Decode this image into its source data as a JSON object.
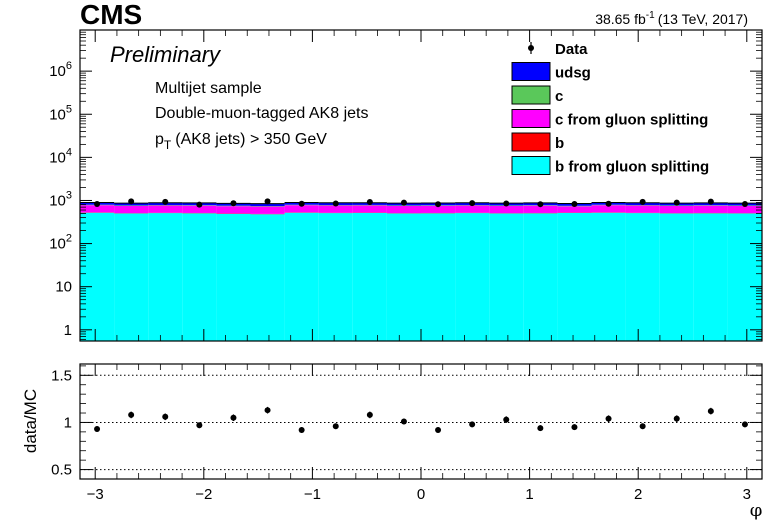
{
  "header": {
    "experiment": "CMS",
    "luminosity_value": "38.65 fb",
    "luminosity_unit_exp": "-1",
    "energy_year": "(13 TeV, 2017)",
    "status": "Preliminary"
  },
  "annotations": {
    "sample": "Multijet sample",
    "tagging": "Double-muon-tagged AK8 jets",
    "cut_p": "p",
    "cut_sub": "T",
    "cut_rest": "(AK8 jets) > 350 GeV"
  },
  "legend": {
    "position": "top-right",
    "items": [
      {
        "label": "Data",
        "kind": "marker",
        "color": "#000000"
      },
      {
        "label": "udsg",
        "kind": "box",
        "color": "#0000ff"
      },
      {
        "label": "c",
        "kind": "box",
        "color": "#5ac85a"
      },
      {
        "label": "c from gluon splitting",
        "kind": "box",
        "color": "#ff00ff"
      },
      {
        "label": "b",
        "kind": "box",
        "color": "#ff0000"
      },
      {
        "label": "b from gluon splitting",
        "kind": "box",
        "color": "#00ffff"
      }
    ]
  },
  "chart_data": [
    {
      "type": "area",
      "subtype": "stacked-histogram-with-data-points",
      "xlabel": "φ",
      "ylabel": "",
      "yscale": "log",
      "xlim": [
        -3.14,
        3.14
      ],
      "ylim": [
        0.55,
        9000000
      ],
      "y_ticks": [
        "1",
        "10",
        "10^2",
        "10^3",
        "10^4",
        "10^5",
        "10^6"
      ],
      "bin_edges": [
        -3.14,
        -2.826,
        -2.512,
        -2.198,
        -1.884,
        -1.57,
        -1.256,
        -0.942,
        -0.628,
        -0.314,
        0.0,
        0.314,
        0.628,
        0.942,
        1.256,
        1.57,
        1.884,
        2.198,
        2.512,
        2.826,
        3.14
      ],
      "stack_order": [
        "b from gluon splitting",
        "b",
        "c from gluon splitting",
        "c",
        "udsg"
      ],
      "series": [
        {
          "name": "b from gluon splitting",
          "color": "#00ffff",
          "values": [
            520,
            500,
            510,
            505,
            490,
            480,
            520,
            510,
            515,
            500,
            505,
            510,
            500,
            505,
            515,
            520,
            510,
            500,
            505,
            500
          ]
        },
        {
          "name": "b",
          "color": "#ff0000",
          "values": [
            8,
            8,
            8,
            8,
            8,
            8,
            8,
            8,
            8,
            8,
            8,
            8,
            8,
            8,
            8,
            8,
            8,
            8,
            8,
            8
          ]
        },
        {
          "name": "c from gluon splitting",
          "color": "#ff00ff",
          "values": [
            250,
            240,
            245,
            245,
            240,
            235,
            250,
            245,
            245,
            240,
            240,
            245,
            240,
            245,
            210,
            250,
            245,
            240,
            245,
            240
          ]
        },
        {
          "name": "c",
          "color": "#5ac85a",
          "values": [
            20,
            20,
            20,
            20,
            20,
            20,
            20,
            20,
            20,
            20,
            20,
            20,
            20,
            20,
            20,
            20,
            20,
            20,
            20,
            20
          ]
        },
        {
          "name": "udsg",
          "color": "#0000ff",
          "values": [
            100,
            100,
            100,
            100,
            100,
            100,
            100,
            100,
            100,
            100,
            100,
            100,
            100,
            100,
            100,
            100,
            100,
            100,
            100,
            100
          ]
        }
      ],
      "data_points": {
        "name": "Data",
        "x": [
          -2.983,
          -2.669,
          -2.355,
          -2.041,
          -1.727,
          -1.413,
          -1.099,
          -0.785,
          -0.471,
          -0.157,
          0.157,
          0.471,
          0.785,
          1.099,
          1.413,
          1.727,
          2.041,
          2.355,
          2.669,
          2.983
        ],
        "y": [
          830,
          950,
          930,
          800,
          860,
          950,
          840,
          850,
          920,
          890,
          820,
          870,
          850,
          820,
          830,
          840,
          930,
          890,
          940,
          830
        ]
      }
    },
    {
      "type": "scatter",
      "subtype": "ratio-panel",
      "xlabel": "φ",
      "ylabel": "data/MC",
      "xlim": [
        -3.14,
        3.14
      ],
      "ylim": [
        0.4,
        1.62
      ],
      "x_ticks": [
        -3,
        -2,
        -1,
        0,
        1,
        2,
        3
      ],
      "x_tick_labels": [
        "−3",
        "−2",
        "−1",
        "0",
        "1",
        "2",
        "3"
      ],
      "y_ticks": [
        0.5,
        1,
        1.5
      ],
      "y_tick_labels": [
        "0.5",
        "1",
        "1.5"
      ],
      "reference_lines": [
        0.5,
        1.0,
        1.5
      ],
      "x": [
        -2.983,
        -2.669,
        -2.355,
        -2.041,
        -1.727,
        -1.413,
        -1.099,
        -0.785,
        -0.471,
        -0.157,
        0.157,
        0.471,
        0.785,
        1.099,
        1.413,
        1.727,
        2.041,
        2.355,
        2.669,
        2.983
      ],
      "values": [
        0.93,
        1.08,
        1.06,
        0.97,
        1.05,
        1.13,
        0.92,
        0.96,
        1.08,
        1.01,
        0.92,
        0.98,
        1.03,
        0.94,
        0.95,
        1.04,
        0.96,
        1.04,
        1.12,
        0.98
      ],
      "errors": [
        0.03,
        0.035,
        0.035,
        0.03,
        0.035,
        0.035,
        0.03,
        0.03,
        0.035,
        0.03,
        0.03,
        0.03,
        0.035,
        0.03,
        0.03,
        0.035,
        0.03,
        0.035,
        0.035,
        0.03
      ]
    }
  ]
}
